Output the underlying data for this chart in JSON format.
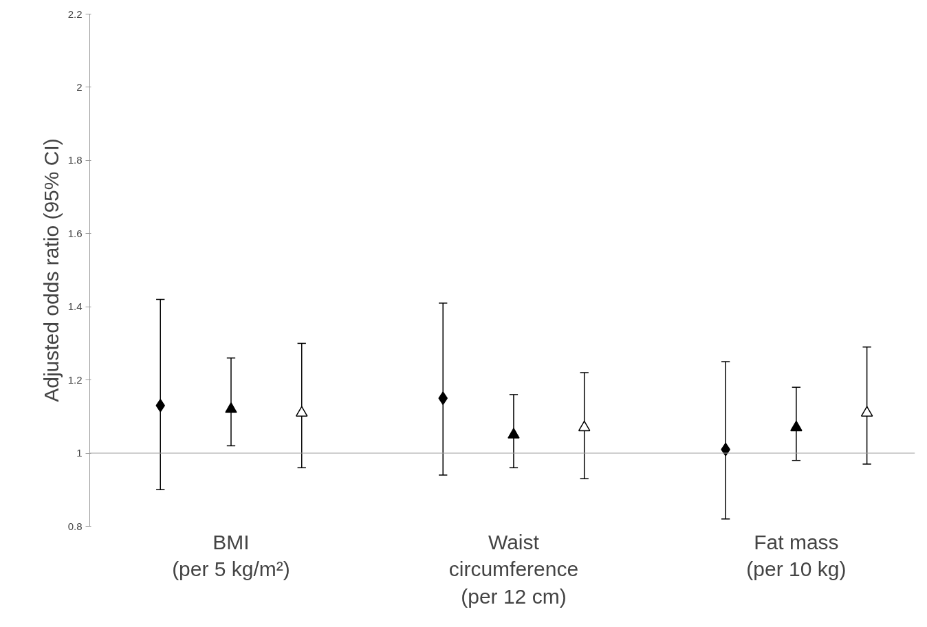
{
  "chart_data": {
    "type": "scatter",
    "ylabel": "Adjusted odds ratio (95% CI)",
    "categories": [
      "BMI\n(per 5 kg/m²)",
      "Waist\ncircumference\n(per 12 cm)",
      "Fat mass\n(per 10 kg)"
    ],
    "series": [
      {
        "color": "#000000",
        "marker": "diamond",
        "values": [
          1.13,
          1.15,
          1.01
        ],
        "errors": [
          [
            0.9,
            1.42
          ],
          [
            0.94,
            1.41
          ],
          [
            0.82,
            1.25
          ]
        ]
      },
      {
        "color": "#000000",
        "marker": "triangle",
        "values": [
          1.12,
          1.05,
          1.07
        ],
        "errors": [
          [
            1.02,
            1.26
          ],
          [
            0.96,
            1.16
          ],
          [
            0.98,
            1.18
          ]
        ]
      },
      {
        "color": "#ffffff",
        "marker": "triangle",
        "values": [
          1.11,
          1.07,
          1.11
        ],
        "errors": [
          [
            0.96,
            1.3
          ],
          [
            0.93,
            1.22
          ],
          [
            0.97,
            1.29
          ]
        ]
      }
    ],
    "ylim": [
      0.8,
      2.2
    ],
    "yticks": [
      0.8,
      1,
      1.2,
      1.4,
      1.6,
      1.8,
      2,
      2.2
    ],
    "ref_lines": [
      {
        "axis": "y",
        "value": 1,
        "color": "#a0a0a0"
      }
    ],
    "grid": false
  }
}
